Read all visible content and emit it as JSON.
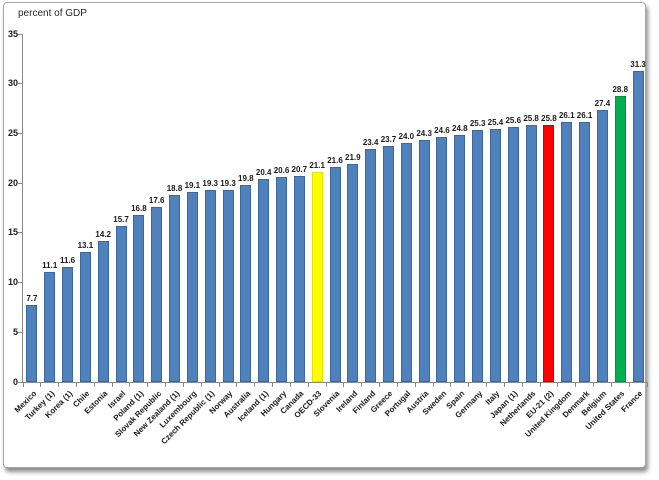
{
  "chart_data": {
    "type": "bar",
    "title": "percent of GDP",
    "xlabel": "",
    "ylabel": "percent of GDP",
    "ylim": [
      0,
      35
    ],
    "yticks": [
      0,
      5,
      10,
      15,
      20,
      25,
      30,
      35
    ],
    "grid": false,
    "legend": "none",
    "categories": [
      "Mexico",
      "Turkey (1)",
      "Korea (1)",
      "Chile",
      "Estonia",
      "Israel",
      "Poland (1)",
      "Slovak Republic",
      "New Zealand (1)",
      "Luxembourg",
      "Czech Republic (1)",
      "Norway",
      "Australia",
      "Iceland (1)",
      "Hungary",
      "Canada",
      "OECD-33",
      "Slovenia",
      "Ireland",
      "Finland",
      "Greece",
      "Portugal",
      "Austria",
      "Sweden",
      "Spain",
      "Germany",
      "Italy",
      "Japan (1)",
      "Netherlands",
      "EU-21 (2)",
      "United Kingdom",
      "Denmark",
      "Belgium",
      "United States",
      "France"
    ],
    "values": [
      7.7,
      11.1,
      11.6,
      13.1,
      14.2,
      15.7,
      16.8,
      17.6,
      18.8,
      19.1,
      19.3,
      19.3,
      19.8,
      20.4,
      20.6,
      20.7,
      21.1,
      21.6,
      21.9,
      23.4,
      23.7,
      24.0,
      24.3,
      24.6,
      24.8,
      25.3,
      25.4,
      25.6,
      25.8,
      25.8,
      26.1,
      26.1,
      27.4,
      28.8,
      31.3
    ],
    "value_labels": [
      "7.7",
      "11.1",
      "11.6",
      "13.1",
      "14.2",
      "15.7",
      "16.8",
      "17.6",
      "18.8",
      "19.1",
      "19.3",
      "19.3",
      "19.8",
      "20.4",
      "20.6",
      "20.7",
      "21.1",
      "21.6",
      "21.9",
      "23.4",
      "23.7",
      "24.0",
      "24.3",
      "24.6",
      "24.8",
      "25.3",
      "25.4",
      "25.6",
      "25.8",
      "25.8",
      "26.1",
      "26.1",
      "27.4",
      "28.8",
      "31.3"
    ],
    "bar_style": {
      "default_fill": "#4f81bd",
      "default_border": "#3a679c",
      "overrides": [
        {
          "category": "OECD-33",
          "fill": "#ffff00",
          "border": "#e3e300"
        },
        {
          "category": "EU-21 (2)",
          "fill": "#ff0000",
          "border": "#d40000"
        },
        {
          "category": "United States",
          "fill": "#00b050",
          "border": "#009343"
        }
      ]
    },
    "colors": {
      "axis": "#898989",
      "text": "#1a1a1a"
    }
  }
}
